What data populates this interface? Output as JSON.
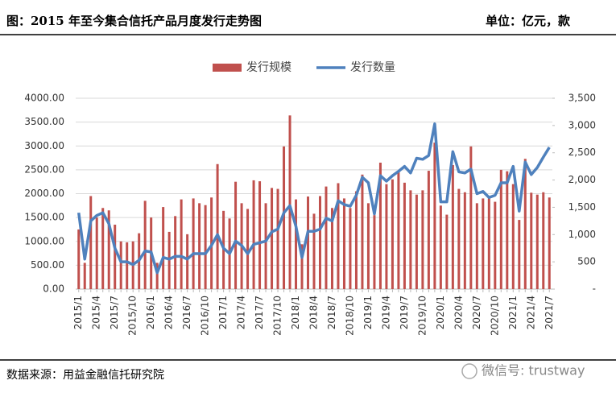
{
  "chart_data": {
    "type": "bar-line",
    "title": "图：2015 年至今集合信托产品月度发行走势图",
    "unit_note": "单位：亿元，款",
    "source": "数据来源：用益金融信托研究院",
    "watermark": "微信号: trustway",
    "categories": [
      "2015/1",
      null,
      null,
      "2015/4",
      null,
      null,
      "2015/7",
      null,
      null,
      "2015/10",
      null,
      null,
      "2016/1",
      null,
      null,
      "2016/4",
      null,
      null,
      "2016/7",
      null,
      null,
      "2016/10",
      null,
      null,
      "2017/1",
      null,
      null,
      "2017/4",
      null,
      null,
      "2017/7",
      null,
      null,
      "2017/10",
      null,
      null,
      "2018/1",
      null,
      null,
      "2018/4",
      null,
      null,
      "2018/7",
      null,
      null,
      "2018/10",
      null,
      null,
      "2019/1",
      null,
      null,
      "2019/4",
      null,
      null,
      "2019/7",
      null,
      null,
      "2019/10",
      null,
      null,
      "2020/1",
      null,
      null,
      "2020/4",
      null,
      null,
      "2020/7",
      null,
      null,
      "2020/10",
      null,
      null,
      "2021/1",
      null,
      null,
      "2021/4",
      null,
      null,
      "2021/7"
    ],
    "series": [
      {
        "name": "发行规模",
        "color": "#c0504d",
        "type": "bar",
        "axis": "y",
        "values": [
          1250,
          550,
          1950,
          1500,
          1700,
          1650,
          1350,
          1000,
          980,
          1000,
          1170,
          1850,
          1500,
          550,
          1720,
          1200,
          1530,
          1880,
          1150,
          1900,
          1800,
          1760,
          1920,
          2620,
          1640,
          1480,
          2250,
          1800,
          1680,
          2280,
          2260,
          1800,
          2120,
          2100,
          2990,
          3640,
          1880,
          940,
          1940,
          1580,
          1950,
          2150,
          1700,
          2220,
          1900,
          1700,
          2050,
          2400,
          1800,
          1550,
          2650,
          2200,
          2300,
          2450,
          2230,
          2070,
          1980,
          2070,
          2480,
          3070,
          1750,
          1560,
          2600,
          2100,
          2030,
          2990,
          1800,
          1900,
          1900,
          1830,
          2500,
          2470,
          2200,
          1450,
          2730,
          2020,
          1980,
          2030,
          1920
        ]
      },
      {
        "name": "发行数量",
        "color": "#4f81bd",
        "type": "line",
        "axis": "y2",
        "values": [
          1400,
          550,
          1250,
          1350,
          1400,
          1200,
          750,
          500,
          500,
          450,
          530,
          700,
          680,
          300,
          580,
          550,
          600,
          600,
          550,
          650,
          650,
          650,
          800,
          1000,
          750,
          650,
          880,
          800,
          650,
          820,
          850,
          880,
          1050,
          1100,
          1400,
          1530,
          1150,
          580,
          1060,
          1060,
          1100,
          1300,
          1250,
          1620,
          1550,
          1520,
          1720,
          2050,
          1950,
          1380,
          2080,
          1980,
          2080,
          2160,
          2250,
          2130,
          2400,
          2380,
          2450,
          3030,
          1600,
          1600,
          2520,
          2150,
          2130,
          2200,
          1750,
          1790,
          1680,
          1720,
          1950,
          1950,
          2250,
          1430,
          2330,
          2100,
          2230,
          2420,
          2600
        ]
      }
    ],
    "ylim": [
      0,
      4000
    ],
    "yticks": [
      {
        "value": 0,
        "label": "0.00"
      },
      {
        "value": 500,
        "label": "500.00"
      },
      {
        "value": 1000,
        "label": "1000.00"
      },
      {
        "value": 1500,
        "label": "1500.00"
      },
      {
        "value": 2000,
        "label": "2000.00"
      },
      {
        "value": 2500,
        "label": "2500.00"
      },
      {
        "value": 3000,
        "label": "3000.00"
      },
      {
        "value": 3500,
        "label": "3500.00"
      },
      {
        "value": 4000,
        "label": "4000.00"
      }
    ],
    "y2lim": [
      0,
      3500
    ],
    "y2ticks": [
      {
        "value": 0,
        "label": "-"
      },
      500,
      {
        "value": 1000,
        "label": "1,000"
      },
      {
        "value": 1500,
        "label": "1,500"
      },
      {
        "value": 2000,
        "label": "2,000"
      },
      {
        "value": 2500,
        "label": "2,500"
      },
      {
        "value": 3000,
        "label": "3,000"
      },
      {
        "value": 3500,
        "label": "3,500"
      }
    ],
    "grid": true
  }
}
